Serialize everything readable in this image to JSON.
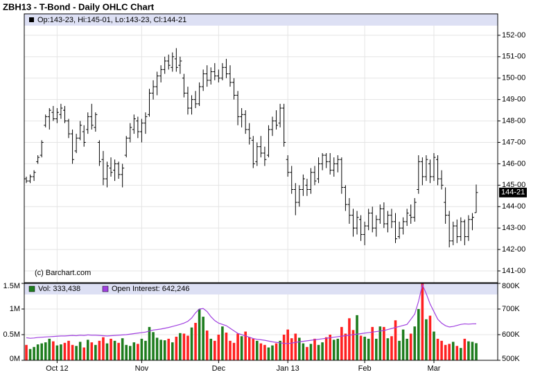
{
  "chart_data": [
    {
      "type": "ohlc",
      "title": "ZBH13 - T-Bond - Daily OHLC Chart",
      "legend": "Op:143-23, Hi:145-01, Lo:143-23, Cl:144-21",
      "watermark": "(c) Barchart.com",
      "last_label": "144-21",
      "color": "#000000",
      "open": [
        145.3,
        145.2,
        145.4,
        146.1,
        146.4,
        147.8,
        148.2,
        148.4,
        148.1,
        148.3,
        148.5,
        148.0,
        147.4,
        146.6,
        147.2,
        147.5,
        147.6,
        148.2,
        147.7,
        147.0,
        146.2,
        145.3,
        145.8,
        145.7,
        146.0,
        145.5,
        146.4,
        147.2,
        147.6,
        148.0,
        147.5,
        147.9,
        148.3,
        149.3,
        149.6,
        150.1,
        150.4,
        150.8,
        150.5,
        150.9,
        150.6,
        150.0,
        149.3,
        148.6,
        149.0,
        148.8,
        149.6,
        150.2,
        149.9,
        150.3,
        150.1,
        150.0,
        150.5,
        150.2,
        149.8,
        149.2,
        148.2,
        148.3,
        147.6,
        147.1,
        146.1,
        146.8,
        146.5,
        146.4,
        147.6,
        148.0,
        147.9,
        148.6,
        146.2,
        145.6,
        144.8,
        144.2,
        144.8,
        145.0,
        144.8,
        145.6,
        145.3,
        146.0,
        146.4,
        146.1,
        145.7,
        146.0,
        146.2,
        144.9,
        144.1,
        143.6,
        143.0,
        143.4,
        142.7,
        143.1,
        143.7,
        143.0,
        143.4,
        143.9,
        143.2,
        143.6,
        143.3,
        142.6,
        143.0,
        143.3,
        143.6,
        143.5,
        144.8,
        146.1,
        145.4,
        146.0,
        145.4,
        146.2,
        145.3,
        144.2,
        143.6,
        142.4,
        143.1,
        142.6,
        143.3,
        142.6,
        143.4,
        143.72
      ],
      "high": [
        145.4,
        145.5,
        145.7,
        146.4,
        147.1,
        148.3,
        148.6,
        148.7,
        148.6,
        148.8,
        148.7,
        148.1,
        147.6,
        147.4,
        148.0,
        147.8,
        148.4,
        148.8,
        148.4,
        147.1,
        146.6,
        146.1,
        146.3,
        146.2,
        146.1,
        146.0,
        147.3,
        147.9,
        148.3,
        148.2,
        148.1,
        148.4,
        149.5,
        149.9,
        150.3,
        150.6,
        151.0,
        151.1,
        151.2,
        151.4,
        151.0,
        150.2,
        149.6,
        149.2,
        149.4,
        149.8,
        150.4,
        150.6,
        150.5,
        150.7,
        150.4,
        150.7,
        150.9,
        150.6,
        150.0,
        149.4,
        148.6,
        148.5,
        147.9,
        147.3,
        147.0,
        147.3,
        146.8,
        147.8,
        148.2,
        148.5,
        148.8,
        148.8,
        146.4,
        145.9,
        145.1,
        145.0,
        145.5,
        145.3,
        145.8,
        145.9,
        146.3,
        146.5,
        146.5,
        146.5,
        146.3,
        146.4,
        146.3,
        145.0,
        144.4,
        143.9,
        143.8,
        143.6,
        143.3,
        143.9,
        144.0,
        143.6,
        144.1,
        144.2,
        143.8,
        143.9,
        143.7,
        143.3,
        143.5,
        143.9,
        144.1,
        144.4,
        146.4,
        146.3,
        146.4,
        146.2,
        146.5,
        146.4,
        145.7,
        144.9,
        143.8,
        143.3,
        143.4,
        143.5,
        143.4,
        143.6,
        143.7,
        145.03
      ],
      "low": [
        145.1,
        145.1,
        145.2,
        146.0,
        146.3,
        147.7,
        147.6,
        148.0,
        147.9,
        148.1,
        147.9,
        147.2,
        146.0,
        146.5,
        147.1,
        146.8,
        147.4,
        147.6,
        147.5,
        145.9,
        145.0,
        144.9,
        145.4,
        145.2,
        145.3,
        144.9,
        146.3,
        147.0,
        147.4,
        147.2,
        147.0,
        147.4,
        148.2,
        149.0,
        149.2,
        149.8,
        150.2,
        150.4,
        150.3,
        150.3,
        150.2,
        149.1,
        148.3,
        148.3,
        148.6,
        148.7,
        149.4,
        149.6,
        149.7,
        149.9,
        149.8,
        149.9,
        150.0,
        149.6,
        149.0,
        147.8,
        147.7,
        147.4,
        146.9,
        145.8,
        145.9,
        146.3,
        145.9,
        146.3,
        147.3,
        147.6,
        147.7,
        146.8,
        145.4,
        144.6,
        143.6,
        144.0,
        144.5,
        144.5,
        144.6,
        145.0,
        145.1,
        145.7,
        145.8,
        145.5,
        145.4,
        145.6,
        144.6,
        143.8,
        143.2,
        142.6,
        142.7,
        142.4,
        142.2,
        142.9,
        142.8,
        142.6,
        143.2,
        143.0,
        142.8,
        143.0,
        142.3,
        142.5,
        142.7,
        143.1,
        143.2,
        143.3,
        144.6,
        145.0,
        145.2,
        145.1,
        145.2,
        145.0,
        144.8,
        143.2,
        142.1,
        142.2,
        142.3,
        142.4,
        142.2,
        142.4,
        142.9,
        143.72
      ],
      "close": [
        145.2,
        145.4,
        145.6,
        146.3,
        147.0,
        148.2,
        148.5,
        148.1,
        148.4,
        148.6,
        148.0,
        147.4,
        146.2,
        147.2,
        147.8,
        147.0,
        148.2,
        147.8,
        148.3,
        146.1,
        145.3,
        145.9,
        145.6,
        146.0,
        145.5,
        145.8,
        147.2,
        147.7,
        148.1,
        147.5,
        147.9,
        148.2,
        149.3,
        149.6,
        150.1,
        150.4,
        150.8,
        150.6,
        151.0,
        150.5,
        150.8,
        149.3,
        148.6,
        149.0,
        148.8,
        149.6,
        150.2,
        149.9,
        150.3,
        150.1,
        150.0,
        150.5,
        150.2,
        149.8,
        149.2,
        148.2,
        148.3,
        147.6,
        147.2,
        146.0,
        146.8,
        146.5,
        146.2,
        147.6,
        148.0,
        147.8,
        148.6,
        147.0,
        145.6,
        144.8,
        144.2,
        144.8,
        145.3,
        144.8,
        145.6,
        145.2,
        146.0,
        146.4,
        146.1,
        145.7,
        146.0,
        146.2,
        144.9,
        144.1,
        143.6,
        143.0,
        143.5,
        142.7,
        143.1,
        143.7,
        143.0,
        143.4,
        143.9,
        143.2,
        143.6,
        143.3,
        142.5,
        143.0,
        143.3,
        143.7,
        143.5,
        144.2,
        146.1,
        145.4,
        146.2,
        145.4,
        146.3,
        145.3,
        145.0,
        143.6,
        142.4,
        143.1,
        142.6,
        143.3,
        142.6,
        143.4,
        143.5,
        144.66
      ],
      "ylim": [
        140.45,
        153.0
      ],
      "yticks": [
        {
          "value": 141,
          "label": "141-00"
        },
        {
          "value": 142,
          "label": "142-00"
        },
        {
          "value": 143,
          "label": "143-00"
        },
        {
          "value": 144,
          "label": "144-00"
        },
        {
          "value": 145,
          "label": "145-00"
        },
        {
          "value": 146,
          "label": "146-00"
        },
        {
          "value": 147,
          "label": "147-00"
        },
        {
          "value": 148,
          "label": "148-00"
        },
        {
          "value": 149,
          "label": "149-00"
        },
        {
          "value": 150,
          "label": "150-00"
        },
        {
          "value": 151,
          "label": "151-00"
        },
        {
          "value": 152,
          "label": "152-00"
        }
      ],
      "grid": true
    },
    {
      "type": "bar",
      "up_color": "#1e7d1e",
      "down_color": "#ff2020",
      "categories": [
        null,
        null,
        null,
        null,
        null,
        null,
        null,
        null,
        "Oct 12",
        null,
        null,
        null,
        null,
        null,
        null,
        null,
        null,
        null,
        null,
        null,
        null,
        null,
        null,
        null,
        null,
        null,
        null,
        null,
        null,
        null,
        "Nov",
        null,
        null,
        null,
        null,
        null,
        null,
        null,
        null,
        null,
        null,
        null,
        null,
        null,
        null,
        null,
        null,
        null,
        null,
        null,
        "Dec",
        null,
        null,
        null,
        null,
        null,
        null,
        null,
        null,
        null,
        null,
        null,
        null,
        null,
        null,
        null,
        null,
        null,
        "Jan 13",
        null,
        null,
        null,
        null,
        null,
        null,
        null,
        null,
        null,
        null,
        null,
        null,
        null,
        null,
        null,
        null,
        null,
        null,
        null,
        "Feb",
        null,
        null,
        null,
        null,
        null,
        null,
        null,
        null,
        null,
        null,
        null,
        null,
        null,
        null,
        null,
        null,
        null,
        "Mar",
        null,
        null,
        null,
        null,
        null,
        null,
        null,
        null,
        null,
        null,
        null
      ],
      "series": [
        {
          "name": "Vol: 333,438",
          "color": "#1e7d1e",
          "values": [
            300000,
            220000,
            260000,
            310000,
            330000,
            350000,
            420000,
            370000,
            290000,
            310000,
            340000,
            380000,
            300000,
            280000,
            360000,
            250000,
            400000,
            350000,
            300000,
            380000,
            450000,
            330000,
            420000,
            380000,
            340000,
            430000,
            300000,
            280000,
            350000,
            320000,
            420000,
            380000,
            650000,
            550000,
            440000,
            400000,
            390000,
            420000,
            350000,
            460000,
            530000,
            520000,
            480000,
            640000,
            730000,
            1000000,
            850000,
            580000,
            420000,
            380000,
            500000,
            660000,
            540000,
            380000,
            340000,
            520000,
            470000,
            560000,
            450000,
            420000,
            380000,
            330000,
            300000,
            250000,
            290000,
            330000,
            380000,
            500000,
            600000,
            430000,
            520000,
            440000,
            330000,
            260000,
            320000,
            420000,
            300000,
            350000,
            450000,
            500000,
            400000,
            420000,
            650000,
            520000,
            820000,
            590000,
            880000,
            480000,
            460000,
            420000,
            650000,
            420000,
            660000,
            650000,
            430000,
            470000,
            780000,
            380000,
            600000,
            420000,
            520000,
            660000,
            1000000,
            1500000,
            800000,
            870000,
            560000,
            420000,
            380000,
            300000,
            320000,
            360000,
            280000,
            240000,
            420000,
            370000,
            360000,
            333438
          ]
        },
        {
          "name": "Open Interest: 642,246",
          "color": "#a040e0",
          "axis": "y2",
          "values": [
            588000,
            586000,
            587000,
            589000,
            590000,
            591000,
            592000,
            593000,
            594000,
            595000,
            595000,
            596000,
            597000,
            596000,
            598000,
            597000,
            599000,
            598000,
            598000,
            597000,
            596000,
            595000,
            596000,
            597000,
            598000,
            599000,
            600000,
            602000,
            604000,
            606000,
            608000,
            610000,
            614000,
            618000,
            620000,
            622000,
            625000,
            628000,
            632000,
            636000,
            640000,
            645000,
            652000,
            665000,
            685000,
            700000,
            702000,
            690000,
            670000,
            655000,
            645000,
            640000,
            635000,
            625000,
            615000,
            605000,
            600000,
            595000,
            590000,
            585000,
            582000,
            580000,
            578000,
            575000,
            572000,
            570000,
            568000,
            566000,
            565000,
            567000,
            570000,
            572000,
            574000,
            576000,
            578000,
            580000,
            582000,
            584000,
            586000,
            588000,
            590000,
            592000,
            594000,
            596000,
            598000,
            600000,
            602000,
            604000,
            606000,
            608000,
            610000,
            612000,
            614000,
            616000,
            620000,
            624000,
            628000,
            632000,
            636000,
            640000,
            660000,
            680000,
            730000,
            795000,
            760000,
            720000,
            690000,
            660000,
            645000,
            635000,
            630000,
            632000,
            636000,
            640000,
            642000,
            641000,
            642000,
            642246
          ]
        }
      ],
      "ylim": [
        0,
        1500000
      ],
      "yticks": [
        {
          "value": 0,
          "label": "0M"
        },
        {
          "value": 500000,
          "label": "0.5M"
        },
        {
          "value": 1000000,
          "label": "1M"
        },
        {
          "value": 1500000,
          "label": "1.5M"
        }
      ],
      "y2lim": [
        500000,
        800000
      ],
      "y2ticks": [
        {
          "value": 500000,
          "label": "500K"
        },
        {
          "value": 600000,
          "label": "600K"
        },
        {
          "value": 700000,
          "label": "700K"
        },
        {
          "value": 800000,
          "label": "800K"
        }
      ],
      "grid": true
    }
  ]
}
